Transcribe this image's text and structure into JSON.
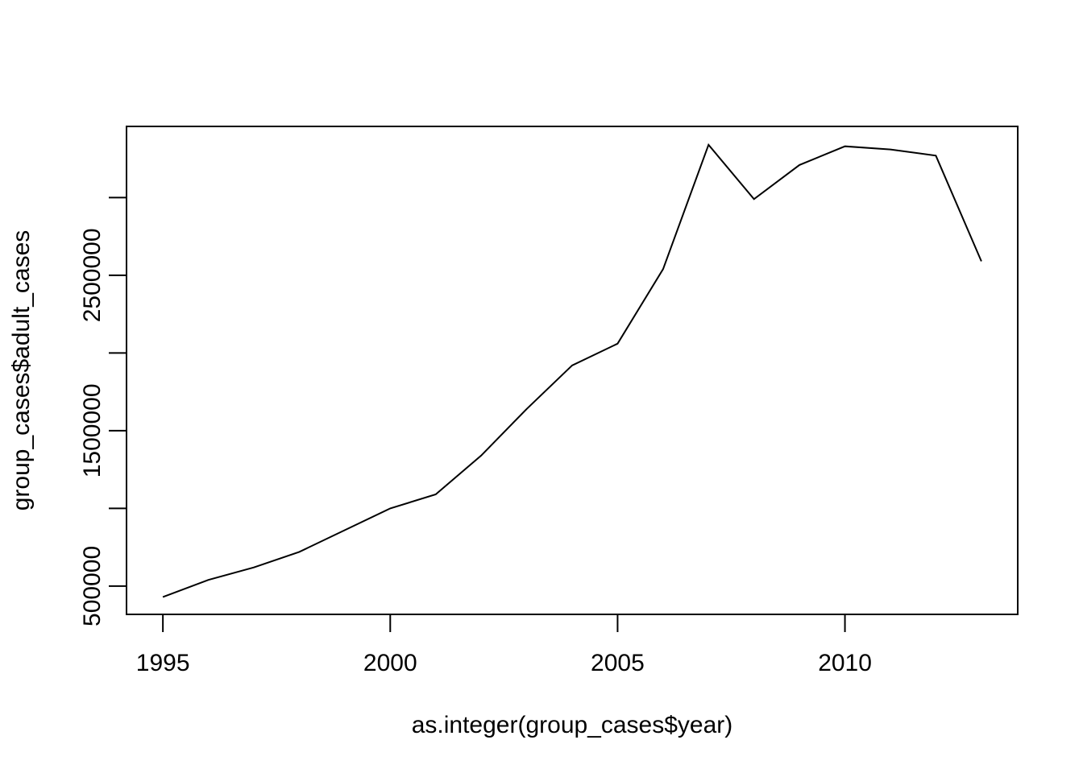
{
  "chart_data": {
    "type": "line",
    "title": "",
    "xlabel": "as.integer(group_cases$year)",
    "ylabel": "group_cases$adult_cases",
    "x": [
      1995,
      1996,
      1997,
      1998,
      1999,
      2000,
      2001,
      2002,
      2003,
      2004,
      2005,
      2006,
      2007,
      2008,
      2009,
      2010,
      2011,
      2012,
      2013
    ],
    "series": [
      {
        "values": [
          430000,
          540000,
          620000,
          720000,
          860000,
          1000000,
          1090000,
          1340000,
          1640000,
          1920000,
          2060000,
          2540000,
          3340000,
          2990000,
          3210000,
          3330000,
          3310000,
          3270000,
          2590000
        ]
      }
    ],
    "xlim": [
      1994.2,
      2013.8
    ],
    "ylim": [
      318000,
      3458000
    ],
    "x_ticks": [
      1995,
      2000,
      2005,
      2010
    ],
    "x_tick_labels": [
      "1995",
      "2000",
      "2005",
      "2010"
    ],
    "y_ticks": [
      500000,
      1000000,
      1500000,
      2000000,
      2500000,
      3000000
    ],
    "y_tick_labels": [
      {
        "value": 500000,
        "label": "500000"
      },
      {
        "value": 1500000,
        "label": "1500000"
      },
      {
        "value": 2500000,
        "label": "2500000"
      }
    ],
    "grid": false,
    "legend": "none",
    "colors": {
      "line": "#000000",
      "axis": "#000000",
      "background": "#ffffff"
    }
  }
}
